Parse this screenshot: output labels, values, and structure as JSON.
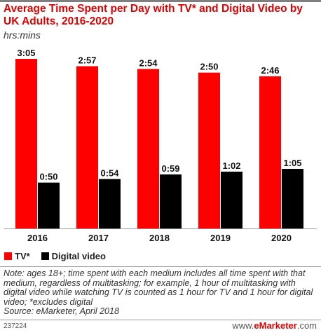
{
  "header": {
    "title": "Average Time Spent per Day with TV* and Digital Video by UK Adults, 2016-2020",
    "subtitle": "hrs:mins"
  },
  "colors": {
    "tv": "#ff0000",
    "digital_video": "#000000",
    "title": "#e00000"
  },
  "legend": {
    "tv_label": "TV*",
    "digital_label": "Digital video"
  },
  "chart_data": {
    "type": "bar",
    "title": "Average Time Spent per Day with TV* and Digital Video by UK Adults, 2016-2020",
    "subtitle": "hrs:mins",
    "categories": [
      "2016",
      "2017",
      "2018",
      "2019",
      "2020"
    ],
    "series": [
      {
        "name": "TV*",
        "values_minutes": [
          185,
          177,
          174,
          170,
          166
        ],
        "labels": [
          "3:05",
          "2:57",
          "2:54",
          "2:50",
          "2:46"
        ],
        "color": "#ff0000"
      },
      {
        "name": "Digital video",
        "values_minutes": [
          50,
          54,
          59,
          62,
          65
        ],
        "labels": [
          "0:50",
          "0:54",
          "0:59",
          "1:02",
          "1:05"
        ],
        "color": "#000000"
      }
    ],
    "ylim": [
      0,
      185
    ],
    "grid": false,
    "legend_position": "bottom-left"
  },
  "footer": {
    "note": "Note: ages 18+; time spent with each medium includes all time spent with that medium, regardless of multitasking; for example, 1 hour of multitasking with digital video while watching TV is counted as 1 hour for TV and 1 hour for digital video; *excludes digital",
    "source": "Source: eMarketer, April 2018",
    "id": "237224",
    "brand_prefix": "www.",
    "brand_name": "eMarketer",
    "brand_suffix": ".com"
  }
}
